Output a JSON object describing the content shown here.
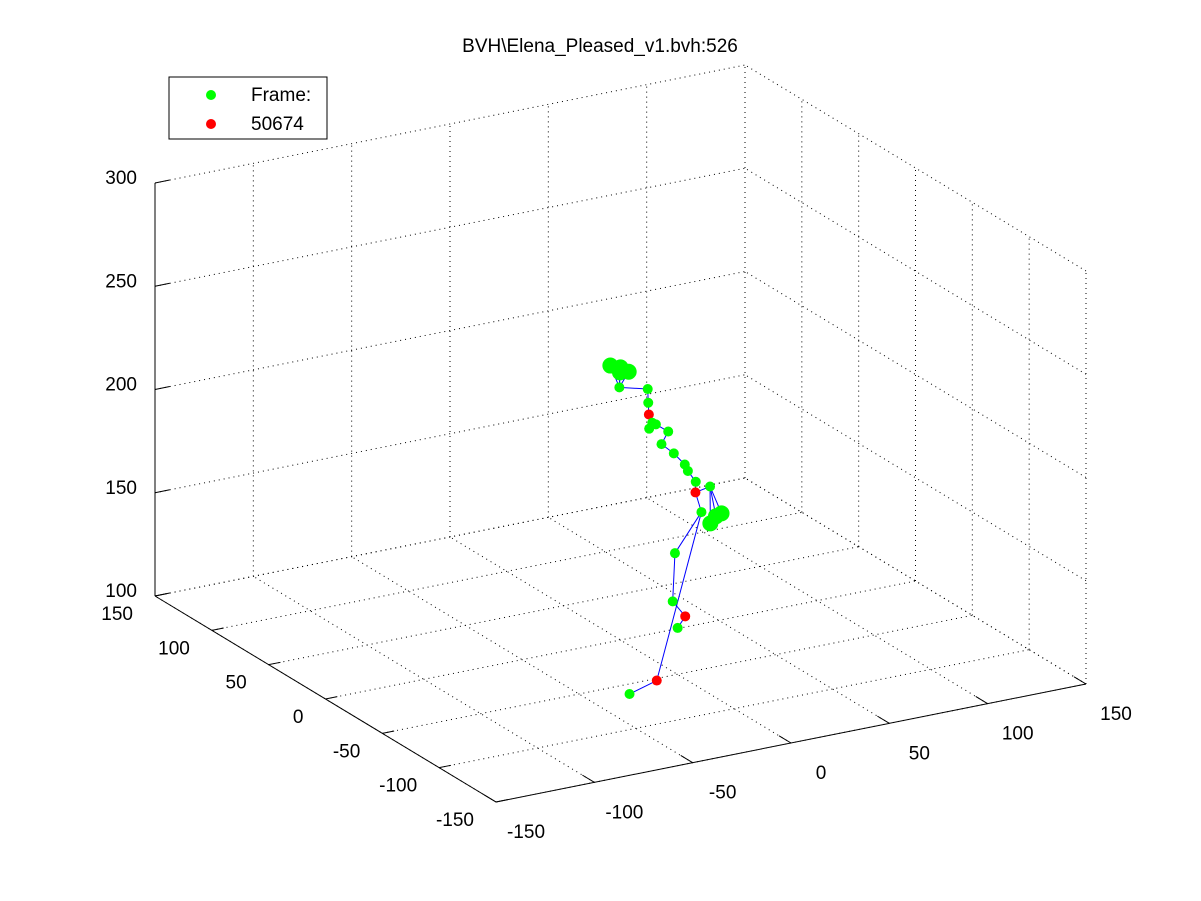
{
  "chart_data": {
    "type": "scatter",
    "title": "BVH\\Elena_Pleased_v1.bvh:526",
    "legend": {
      "placement": "top-left",
      "entries": [
        {
          "label": "Frame:",
          "color": "#00ff00"
        },
        {
          "label": "50674",
          "color": "#ff0000"
        }
      ]
    },
    "axes": {
      "x": {
        "ticks": [
          -150,
          -100,
          -50,
          0,
          50,
          100,
          150
        ],
        "lim": [
          -150,
          150
        ]
      },
      "y": {
        "ticks": [
          -150,
          -100,
          -50,
          0,
          50,
          100,
          150
        ],
        "lim": [
          -150,
          150
        ]
      },
      "z": {
        "ticks": [
          100,
          150,
          200,
          250,
          300
        ],
        "lim": [
          100,
          300
        ]
      }
    },
    "grid": "dotted",
    "colors": {
      "joint": "#00ff00",
      "highlight": "#ff0000",
      "bone": "#0000ff"
    },
    "joints": [
      {
        "id": "head_top",
        "x": 0,
        "y": 0,
        "z": 232,
        "color": "green",
        "size": "large"
      },
      {
        "id": "head_a",
        "x": -4,
        "y": 2,
        "z": 233,
        "color": "green",
        "size": "large"
      },
      {
        "id": "head_b",
        "x": 3,
        "y": -2,
        "z": 230,
        "color": "green",
        "size": "large"
      },
      {
        "id": "head_c",
        "x": -2,
        "y": -3,
        "z": 231,
        "color": "green",
        "size": "large"
      },
      {
        "id": "head_base",
        "x": 0,
        "y": 1,
        "z": 222,
        "color": "green"
      },
      {
        "id": "neck",
        "x": 15,
        "y": 2,
        "z": 218,
        "color": "green"
      },
      {
        "id": "chest_a",
        "x": 17,
        "y": 5,
        "z": 210,
        "color": "green"
      },
      {
        "id": "chest_red",
        "x": 15,
        "y": 1,
        "z": 206,
        "color": "red"
      },
      {
        "id": "chest_b",
        "x": 15,
        "y": -2,
        "z": 203,
        "color": "green"
      },
      {
        "id": "chest_c",
        "x": 14,
        "y": -1,
        "z": 200,
        "color": "green"
      },
      {
        "id": "spine_a",
        "x": 18,
        "y": 0,
        "z": 201,
        "color": "green"
      },
      {
        "id": "spine_b",
        "x": 26,
        "y": 3,
        "z": 195,
        "color": "green"
      },
      {
        "id": "spine_c",
        "x": 22,
        "y": 2,
        "z": 190,
        "color": "green"
      },
      {
        "id": "spine_d",
        "x": 30,
        "y": 5,
        "z": 183,
        "color": "green"
      },
      {
        "id": "spine_e",
        "x": 35,
        "y": 4,
        "z": 177,
        "color": "green"
      },
      {
        "id": "spine_f",
        "x": 36,
        "y": 3,
        "z": 174,
        "color": "green"
      },
      {
        "id": "spine_g",
        "x": 40,
        "y": 3,
        "z": 168,
        "color": "green"
      },
      {
        "id": "hip_red",
        "x": 41,
        "y": 5,
        "z": 162,
        "color": "red"
      },
      {
        "id": "hip_r",
        "x": 49,
        "y": 6,
        "z": 163,
        "color": "green"
      },
      {
        "id": "hip_l",
        "x": 40,
        "y": -2,
        "z": 155,
        "color": "green"
      },
      {
        "id": "hand_r",
        "x": 52,
        "y": 6,
        "z": 148,
        "color": "green",
        "size": "large"
      },
      {
        "id": "hand_r2",
        "x": 56,
        "y": 8,
        "z": 148,
        "color": "green",
        "size": "large"
      },
      {
        "id": "hand_r3",
        "x": 48,
        "y": 4,
        "z": 146,
        "color": "green",
        "size": "large"
      },
      {
        "id": "knee_l",
        "x": 30,
        "y": 4,
        "z": 135,
        "color": "green"
      },
      {
        "id": "shin_l",
        "x": 30,
        "y": 6,
        "z": 111,
        "color": "green"
      },
      {
        "id": "ankle_red",
        "x": 41,
        "y": 14,
        "z": 99,
        "color": "red"
      },
      {
        "id": "foot_l",
        "x": 36,
        "y": 12,
        "z": 95,
        "color": "green"
      },
      {
        "id": "ankle_red2",
        "x": 30,
        "y": 20,
        "z": 68,
        "color": "red"
      },
      {
        "id": "foot_r",
        "x": 15,
        "y": 18,
        "z": 65,
        "color": "green"
      }
    ]
  }
}
